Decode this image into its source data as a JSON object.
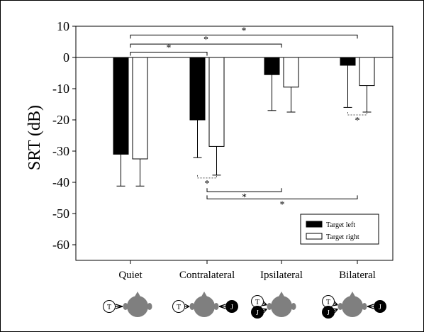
{
  "chart_data": {
    "type": "bar",
    "ylabel": "SRT (dB)",
    "ylim": [
      -65,
      10
    ],
    "yticks": [
      10,
      0,
      -10,
      -20,
      -30,
      -40,
      -50,
      -60
    ],
    "categories": [
      "Quiet",
      "Contralateral",
      "Ipsilateral",
      "Bilateral"
    ],
    "series": [
      {
        "name": "Target left",
        "color": "#000000",
        "values": [
          -31,
          -20,
          -5.5,
          -2.5
        ],
        "error": [
          10.2,
          12.1,
          11.5,
          13.5
        ]
      },
      {
        "name": "Target right",
        "color": "#ffffff",
        "values": [
          -32.5,
          -28.5,
          -9.5,
          -9
        ],
        "error": [
          8.7,
          9.2,
          8,
          8.5
        ]
      }
    ],
    "significance": [
      {
        "type": "upper",
        "from": 0,
        "to": 3,
        "y": 7.2,
        "label": "*"
      },
      {
        "type": "upper",
        "from": 0,
        "to": 2,
        "y": 4.3,
        "label": "*"
      },
      {
        "type": "upper",
        "from": 0,
        "to": 1,
        "y": 1.7,
        "label": "*"
      },
      {
        "type": "lower",
        "from": 1,
        "to": 2,
        "y": -43,
        "label": "*"
      },
      {
        "type": "lower",
        "from": 1,
        "to": 3,
        "y": -45.3,
        "label": "*"
      }
    ],
    "within_group": [
      {
        "category": 1,
        "label": "*"
      },
      {
        "category": 3,
        "label": "*"
      }
    ],
    "legend": {
      "position": "bottom-right",
      "entries": [
        "Target left",
        "Target right"
      ]
    },
    "grid": false,
    "icon_labels": {
      "target": "T",
      "jammer": "J"
    },
    "icon_colors": {
      "head": "#7f7f7f",
      "jammer": "#000000",
      "target": "#ffffff"
    }
  }
}
